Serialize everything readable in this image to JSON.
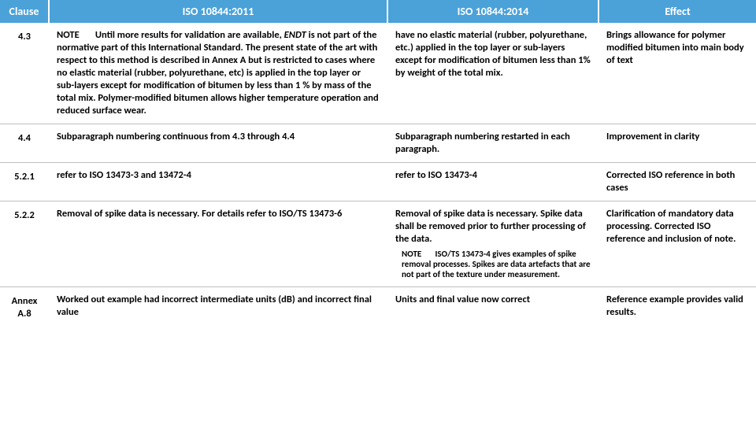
{
  "table": {
    "header_bg": "#4aa2d9",
    "header_fg": "#ffffff",
    "columns": [
      "Clause",
      "ISO 10844:2011",
      "ISO 10844:2014",
      "Effect"
    ],
    "rows": [
      {
        "clause": "4.3",
        "iso2011": {
          "note_label": "NOTE",
          "text": "Until more results for validation are available, ENDT is not part of the normative part of this International Standard. The present state of the art with respect to this method is described in Annex A but is restricted to cases where no elastic material (rubber, polyurethane, etc) is applied in the top layer or sub-layers except for modification of bitumen by less than 1 % by mass of the total mix. Polymer-modified bitumen allows higher temperature operation and reduced surface wear."
        },
        "iso2014": "have no elastic material (rubber, polyurethane, etc.) applied in the top layer or sub-layers except for modification of bitumen less than 1% by weight of the total mix.",
        "effect": "Brings allowance for polymer modified bitumen into main body of text"
      },
      {
        "clause": "4.4",
        "iso2011_plain": "Subparagraph numbering continuous from 4.3 through 4.4",
        "iso2014": "Subparagraph numbering restarted in each paragraph.",
        "effect": "Improvement in clarity"
      },
      {
        "clause": "5.2.1",
        "iso2011_plain": "refer to ISO 13473-3 and 13472-4",
        "iso2014": "refer to ISO 13473-4",
        "effect": "Corrected ISO reference in both cases"
      },
      {
        "clause": "5.2.2",
        "iso2011_plain": "Removal of spike data is necessary.  For details refer to ISO/TS 13473-6",
        "iso2014_main": "Removal of spike data is necessary. Spike data shall be removed prior to further processing of the data.",
        "iso2014_note_label": "NOTE",
        "iso2014_note": "ISO/TS 13473-4 gives examples of spike removal processes. Spikes are data artefacts that are not part of the texture under measurement.",
        "effect": "Clarification of mandatory data processing. Corrected ISO reference and inclusion of note."
      },
      {
        "clause": "Annex A.8",
        "iso2011_plain": "Worked out example had incorrect intermediate units (dB) and incorrect final value",
        "iso2014": "Units and final value now correct",
        "effect": "Reference example provides valid results."
      }
    ]
  }
}
